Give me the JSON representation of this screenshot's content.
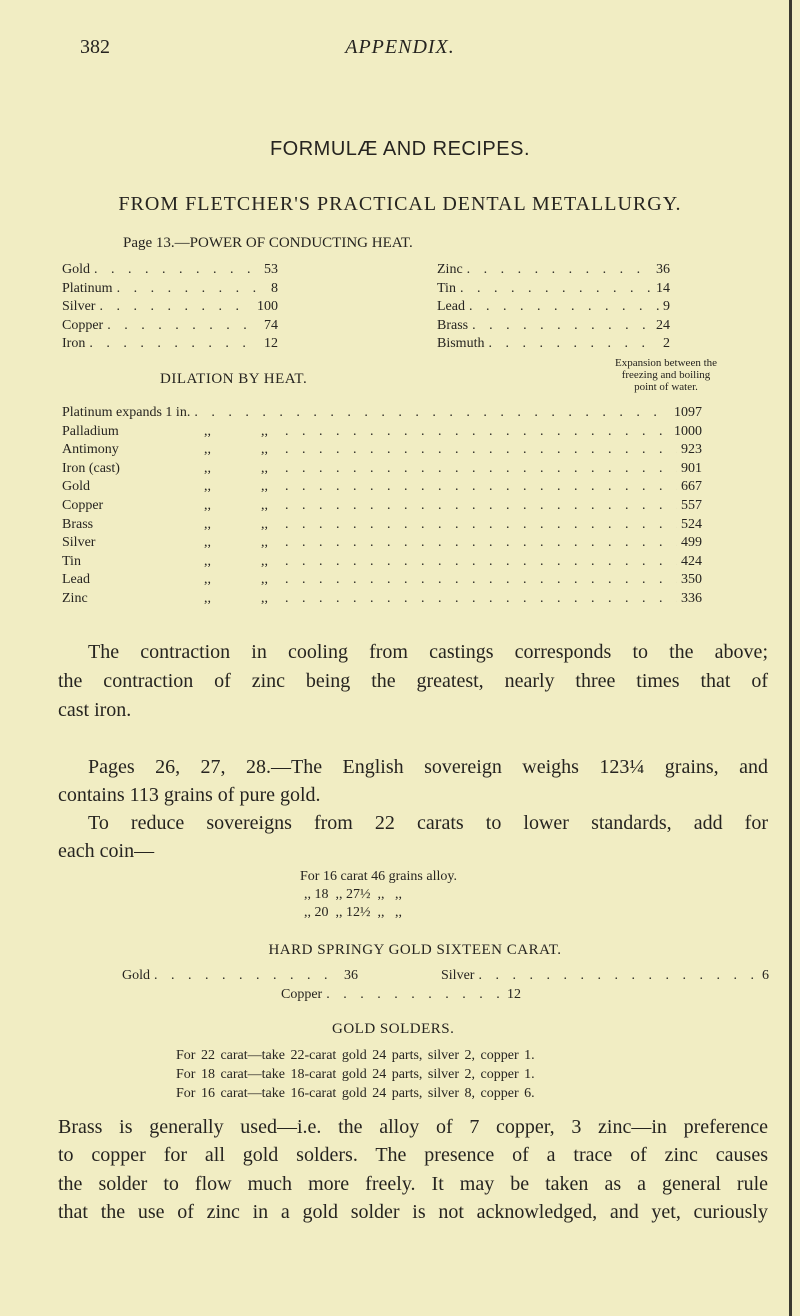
{
  "header": {
    "page_number": "382",
    "running_title": "APPENDIX."
  },
  "title": "FORMULÆ AND RECIPES.",
  "subtitle": "FROM FLETCHER'S PRACTICAL DENTAL METALLURGY.",
  "conductivity": {
    "heading": "Page 13.—POWER OF CONDUCTING HEAT.",
    "left": [
      {
        "name": "Gold",
        "value": "53"
      },
      {
        "name": "Platinum",
        "value": "8"
      },
      {
        "name": "Silver",
        "value": "100"
      },
      {
        "name": "Copper",
        "value": "74"
      },
      {
        "name": "Iron",
        "value": "12"
      }
    ],
    "right": [
      {
        "name": "Zinc",
        "value": "36"
      },
      {
        "name": "Tin",
        "value": "14"
      },
      {
        "name": "Lead",
        "value": "9"
      },
      {
        "name": "Brass",
        "value": "24"
      },
      {
        "name": "Bismuth",
        "value": "2"
      }
    ]
  },
  "dilation": {
    "heading": "DILATION BY HEAT.",
    "note": [
      "Expansion between the",
      "freezing and boiling",
      "point of water."
    ],
    "rows": [
      {
        "name": "Platinum expands 1 in.",
        "c1": "",
        "c2": "",
        "value": "1097"
      },
      {
        "name": "Palladium",
        "c1": ",,",
        "c2": ",,",
        "value": "1000"
      },
      {
        "name": "Antimony",
        "c1": ",,",
        "c2": ",,",
        "value": "923"
      },
      {
        "name": "Iron (cast)",
        "c1": ",,",
        "c2": ",,",
        "value": "901"
      },
      {
        "name": "Gold",
        "c1": ",,",
        "c2": ",,",
        "value": "667"
      },
      {
        "name": "Copper",
        "c1": ",,",
        "c2": ",,",
        "value": "557"
      },
      {
        "name": "Brass",
        "c1": ",,",
        "c2": ",,",
        "value": "524"
      },
      {
        "name": "Silver",
        "c1": ",,",
        "c2": ",,",
        "value": "499"
      },
      {
        "name": "Tin",
        "c1": ",,",
        "c2": ",,",
        "value": "424"
      },
      {
        "name": "Lead",
        "c1": ",,",
        "c2": ",,",
        "value": "350"
      },
      {
        "name": "Zinc",
        "c1": ",,",
        "c2": ",,",
        "value": "336"
      }
    ]
  },
  "para1": [
    "The contraction in cooling from castings corresponds to the above;",
    "the contraction of zinc being the greatest, nearly three times that of",
    "cast iron."
  ],
  "para2": [
    "Pages 26, 27, 28.—The English sovereign weighs 123¼ grains, and",
    "contains 113 grains of pure gold."
  ],
  "para3": [
    "To reduce sovereigns from 22 carats to lower standards, add for",
    "each coin—"
  ],
  "carat_lines": [
    "For 16 carat 46 grains alloy.",
    ",, 18  ,, 27½  ,,   ,,",
    ",, 20  ,, 12½  ,,   ,,"
  ],
  "hard_springy": {
    "heading": "HARD SPRINGY GOLD SIXTEEN CARAT.",
    "gold": {
      "name": "Gold",
      "value": "36"
    },
    "silver": {
      "name": "Silver",
      "value": "6"
    },
    "copper": {
      "name": "Copper",
      "value": "12"
    }
  },
  "solders": {
    "heading": "GOLD SOLDERS.",
    "lines": [
      "For 22 carat—take 22-carat gold 24 parts, silver 2, copper 1.",
      "For 18 carat—take 18-carat gold 24 parts, silver 2, copper 1.",
      "For 16 carat—take 16-carat gold 24 parts, silver 8, copper 6."
    ]
  },
  "para4": [
    "Brass is generally used—i.e. the alloy of 7 copper, 3 zinc—in preference",
    "to copper for all gold solders. The presence of a trace of zinc causes",
    "the solder to flow much more freely. It may be taken as a general rule",
    "that the use of zinc in a gold solder is not acknowledged, and yet, curiously"
  ]
}
